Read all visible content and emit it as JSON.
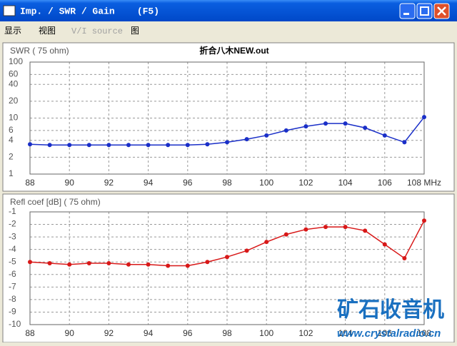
{
  "window": {
    "title": "Imp. / SWR / Gain    (F5)",
    "menu": [
      "显示",
      "视图",
      "V/I source",
      "图"
    ]
  },
  "watermark": {
    "title": "矿石收音机",
    "url": "www.crystalradio.cn"
  },
  "chart_data": [
    {
      "type": "line",
      "title": "折合八木NEW.out",
      "y_label": "SWR ( 75 ohm)",
      "log_y": true,
      "grid": true,
      "x": [
        88,
        89,
        90,
        91,
        92,
        93,
        94,
        95,
        96,
        97,
        98,
        99,
        100,
        101,
        102,
        103,
        104,
        105,
        106,
        107,
        108
      ],
      "xlim": [
        88,
        108
      ],
      "xticks": [
        88,
        90,
        92,
        94,
        96,
        98,
        100,
        102,
        104,
        106,
        {
          "value": 108,
          "label": "108 MHz"
        }
      ],
      "ylim": [
        1,
        100
      ],
      "yticks": [
        1,
        2,
        4,
        6,
        10,
        20,
        40,
        60,
        100
      ],
      "series": [
        {
          "name": "SWR",
          "color": "#1a2fc8",
          "values": [
            3.4,
            3.3,
            3.3,
            3.3,
            3.3,
            3.3,
            3.3,
            3.3,
            3.3,
            3.4,
            3.7,
            4.2,
            4.9,
            6.0,
            7.1,
            8.0,
            8.0,
            6.7,
            4.9,
            3.7,
            10.4
          ]
        }
      ]
    },
    {
      "type": "line",
      "y_label": "Refl coef [dB] ( 75 ohm)",
      "log_y": false,
      "grid": true,
      "x": [
        88,
        89,
        90,
        91,
        92,
        93,
        94,
        95,
        96,
        97,
        98,
        99,
        100,
        101,
        102,
        103,
        104,
        105,
        106,
        107,
        108
      ],
      "xlim": [
        88,
        108
      ],
      "xticks": [
        88,
        90,
        92,
        94,
        96,
        98,
        100,
        102,
        104,
        106,
        108
      ],
      "ylim": [
        -10,
        -1
      ],
      "yticks": [
        -1,
        -2,
        -3,
        -4,
        -5,
        -6,
        -7,
        -8,
        -9,
        -10
      ],
      "series": [
        {
          "name": "Refl coef",
          "color": "#d81818",
          "values": [
            -5.0,
            -5.1,
            -5.2,
            -5.1,
            -5.1,
            -5.2,
            -5.2,
            -5.3,
            -5.3,
            -5.0,
            -4.6,
            -4.1,
            -3.4,
            -2.8,
            -2.4,
            -2.2,
            -2.2,
            -2.5,
            -3.6,
            -4.7,
            -1.7
          ]
        }
      ]
    }
  ]
}
